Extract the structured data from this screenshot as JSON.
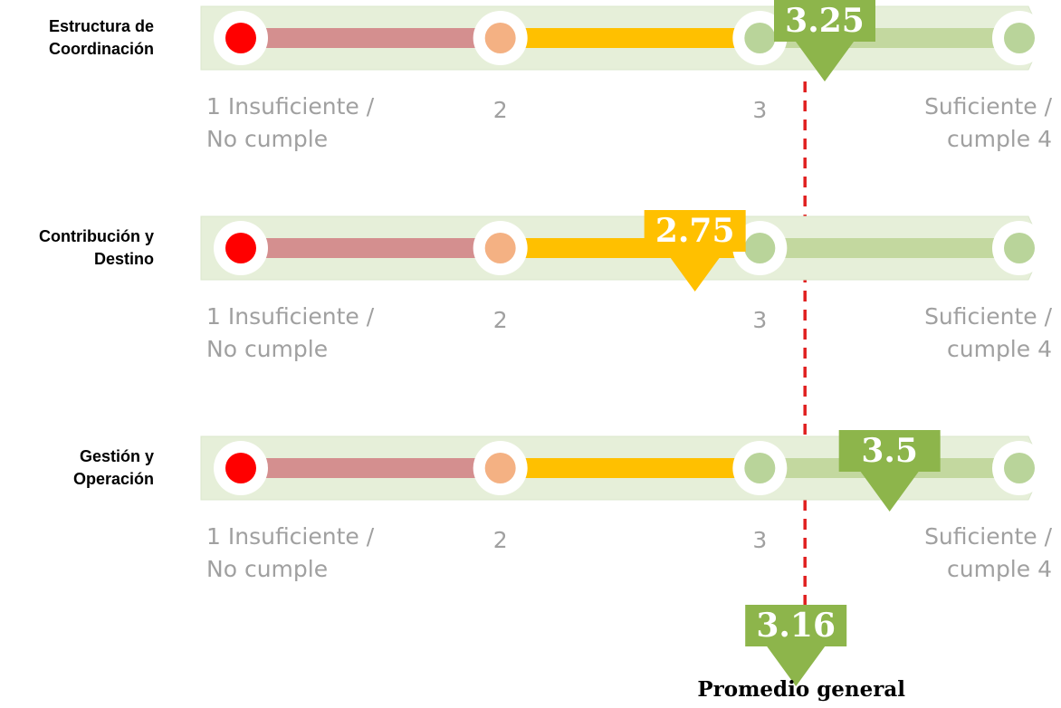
{
  "chart_data": {
    "type": "scale",
    "categories": [
      "Estructura de Coordinación",
      "Contribución y Destino",
      "Gestión y Operación"
    ],
    "values": [
      3.25,
      2.75,
      3.5
    ],
    "marker_colors": [
      "#8db54b",
      "#ffc000",
      "#8db54b"
    ],
    "xlim": [
      1,
      4
    ],
    "xticks": [
      {
        "value": 1,
        "label": "1 Insuficiente / No cumple"
      },
      {
        "value": 2,
        "label": "2"
      },
      {
        "value": 3,
        "label": "3"
      },
      {
        "value": 4,
        "label": "Suficiente / cumple 4"
      }
    ],
    "segment_colors": [
      "#d48f8f",
      "#ffc000",
      "#c3d89f"
    ],
    "tick_colors": [
      "#ff0000",
      "#f4b183",
      "#b9d49a",
      "#b9d49a"
    ],
    "average": {
      "value": 3.16,
      "label": "Promedio general",
      "color": "#8db54b",
      "line_color": "#e02020"
    }
  }
}
